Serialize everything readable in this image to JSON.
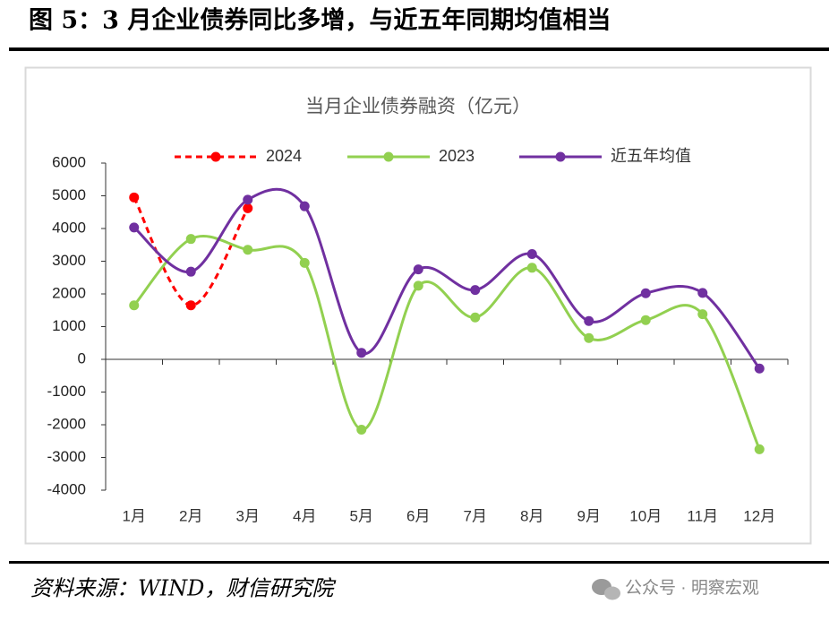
{
  "header": {
    "title": "图 5：3 月企业债券同比多增，与近五年同期均值相当"
  },
  "chart_data": {
    "type": "line",
    "title": "当月企业债券融资（亿元）",
    "categories": [
      "1月",
      "2月",
      "3月",
      "4月",
      "5月",
      "6月",
      "7月",
      "8月",
      "9月",
      "10月",
      "11月",
      "12月"
    ],
    "series": [
      {
        "name": "2024",
        "color": "#ff0000",
        "dashed": true,
        "values": [
          4950,
          1650,
          4620,
          null,
          null,
          null,
          null,
          null,
          null,
          null,
          null,
          null
        ]
      },
      {
        "name": "2023",
        "color": "#92d050",
        "dashed": false,
        "values": [
          1650,
          3680,
          3350,
          2950,
          -2150,
          2250,
          1280,
          2800,
          650,
          1200,
          1380,
          -2750
        ]
      },
      {
        "name": "近五年均值",
        "color": "#7030a0",
        "dashed": false,
        "values": [
          4030,
          2680,
          4880,
          4680,
          200,
          2750,
          2120,
          3220,
          1170,
          2020,
          2030,
          -280
        ]
      }
    ],
    "ylim": [
      -4000,
      6000
    ],
    "yticks": [
      -4000,
      -3000,
      -2000,
      -1000,
      0,
      1000,
      2000,
      3000,
      4000,
      5000,
      6000
    ],
    "negative_tick_color": "#ff0000",
    "smooth": true,
    "grid": false,
    "legend": "top"
  },
  "footer": {
    "source": "资料来源：WIND，财信研究院",
    "watermark": "公众号 · 明察宏观"
  }
}
